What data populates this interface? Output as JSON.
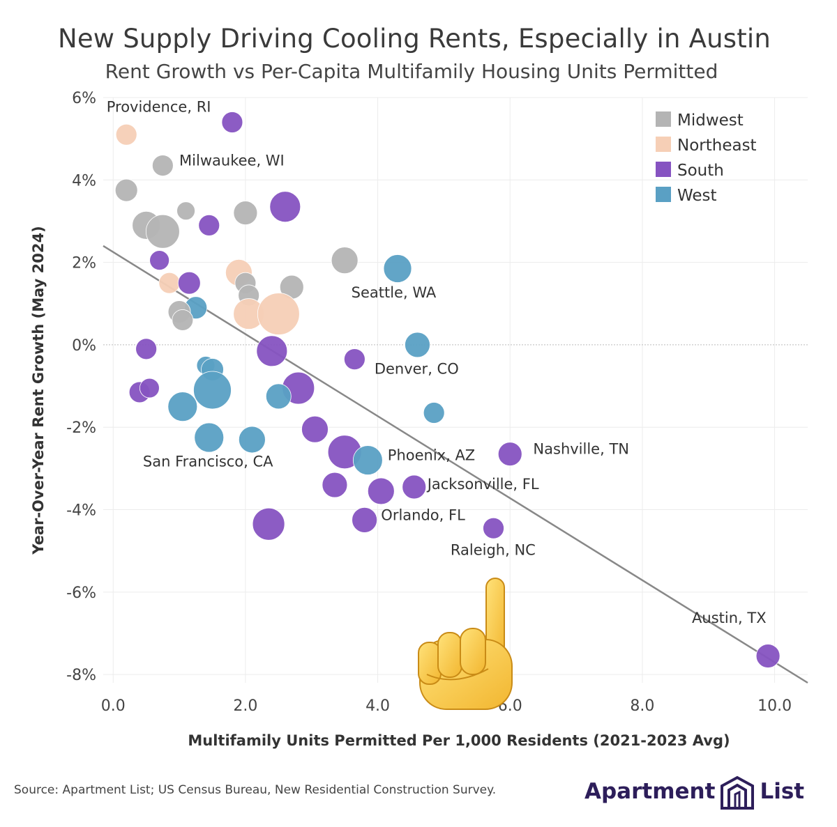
{
  "title": "New Supply Driving Cooling Rents, Especially in Austin",
  "subtitle": "Rent Growth vs Per-Capita Multifamily Housing Units Permitted",
  "source": "Source: Apartment List; US Census Bureau, New Residential Construction Survey.",
  "logo": {
    "word1": "Apartment",
    "word2": "List"
  },
  "colors": {
    "Midwest": "#b4b4b4",
    "Northeast": "#f6cfb6",
    "South": "#8653c1",
    "West": "#5aa0c4",
    "trend": "#888888",
    "grid": "#ececec"
  },
  "chart_data": {
    "type": "scatter",
    "xlabel": "Multifamily Units Permitted Per 1,000 Residents (2021-2023 Avg)",
    "ylabel": "Year-Over-Year Rent Growth (May 2024)",
    "xlim": [
      -0.15,
      10.5
    ],
    "ylim": [
      -8.2,
      6.0
    ],
    "x_ticks": [
      0,
      2,
      4,
      6,
      8,
      10
    ],
    "x_tick_labels": [
      "0.0",
      "2.0",
      "4.0",
      "6.0",
      "8.0",
      "10.0"
    ],
    "y_ticks": [
      6,
      4,
      2,
      0,
      -2,
      -4,
      -6,
      -8
    ],
    "y_tick_labels": [
      "6%",
      "4%",
      "2%",
      "0%",
      "-2%",
      "-4%",
      "-6%",
      "-8%"
    ],
    "grid": true,
    "legend_position": "top-right",
    "legend": [
      "Midwest",
      "Northeast",
      "South",
      "West"
    ],
    "trendline": {
      "x1": -0.15,
      "y1": 2.4,
      "x2": 10.5,
      "y2": -8.2
    },
    "points": [
      {
        "x": 1.8,
        "y": 5.4,
        "region": "South",
        "size": 15
      },
      {
        "x": 0.2,
        "y": 5.1,
        "region": "Northeast",
        "size": 15
      },
      {
        "x": 0.75,
        "y": 4.35,
        "region": "Midwest",
        "size": 15
      },
      {
        "x": 0.2,
        "y": 3.75,
        "region": "Midwest",
        "size": 16
      },
      {
        "x": 1.1,
        "y": 3.25,
        "region": "Midwest",
        "size": 13
      },
      {
        "x": 2.0,
        "y": 3.2,
        "region": "Midwest",
        "size": 17
      },
      {
        "x": 2.6,
        "y": 3.35,
        "region": "South",
        "size": 22
      },
      {
        "x": 1.45,
        "y": 2.9,
        "region": "South",
        "size": 15
      },
      {
        "x": 0.5,
        "y": 2.9,
        "region": "Midwest",
        "size": 20
      },
      {
        "x": 0.75,
        "y": 2.75,
        "region": "Midwest",
        "size": 24
      },
      {
        "x": 0.7,
        "y": 2.05,
        "region": "South",
        "size": 14
      },
      {
        "x": 3.5,
        "y": 2.05,
        "region": "Midwest",
        "size": 19
      },
      {
        "x": 4.3,
        "y": 1.85,
        "region": "West",
        "size": 20
      },
      {
        "x": 1.9,
        "y": 1.75,
        "region": "Northeast",
        "size": 19
      },
      {
        "x": 0.85,
        "y": 1.5,
        "region": "Northeast",
        "size": 15
      },
      {
        "x": 1.15,
        "y": 1.5,
        "region": "South",
        "size": 16
      },
      {
        "x": 2.0,
        "y": 1.5,
        "region": "Midwest",
        "size": 15
      },
      {
        "x": 2.7,
        "y": 1.4,
        "region": "Midwest",
        "size": 17
      },
      {
        "x": 2.05,
        "y": 1.2,
        "region": "Midwest",
        "size": 15
      },
      {
        "x": 1.25,
        "y": 0.9,
        "region": "West",
        "size": 16
      },
      {
        "x": 1.0,
        "y": 0.8,
        "region": "Midwest",
        "size": 16
      },
      {
        "x": 1.05,
        "y": 0.6,
        "region": "Midwest",
        "size": 15
      },
      {
        "x": 2.05,
        "y": 0.75,
        "region": "Northeast",
        "size": 22
      },
      {
        "x": 2.5,
        "y": 0.75,
        "region": "Northeast",
        "size": 30
      },
      {
        "x": 4.6,
        "y": 0.0,
        "region": "West",
        "size": 18
      },
      {
        "x": 0.5,
        "y": -0.1,
        "region": "South",
        "size": 15
      },
      {
        "x": 2.4,
        "y": -0.15,
        "region": "South",
        "size": 22
      },
      {
        "x": 3.65,
        "y": -0.35,
        "region": "South",
        "size": 15
      },
      {
        "x": 1.4,
        "y": -0.5,
        "region": "West",
        "size": 13
      },
      {
        "x": 1.5,
        "y": -0.6,
        "region": "West",
        "size": 16
      },
      {
        "x": 0.4,
        "y": -1.15,
        "region": "South",
        "size": 15
      },
      {
        "x": 0.55,
        "y": -1.05,
        "region": "South",
        "size": 14
      },
      {
        "x": 1.5,
        "y": -1.1,
        "region": "West",
        "size": 27
      },
      {
        "x": 2.8,
        "y": -1.05,
        "region": "South",
        "size": 23
      },
      {
        "x": 2.5,
        "y": -1.25,
        "region": "West",
        "size": 18
      },
      {
        "x": 1.05,
        "y": -1.5,
        "region": "West",
        "size": 21
      },
      {
        "x": 4.85,
        "y": -1.65,
        "region": "West",
        "size": 15
      },
      {
        "x": 3.05,
        "y": -2.05,
        "region": "South",
        "size": 19
      },
      {
        "x": 1.45,
        "y": -2.25,
        "region": "West",
        "size": 21
      },
      {
        "x": 2.1,
        "y": -2.3,
        "region": "West",
        "size": 19
      },
      {
        "x": 3.5,
        "y": -2.6,
        "region": "South",
        "size": 24
      },
      {
        "x": 3.85,
        "y": -2.8,
        "region": "West",
        "size": 21
      },
      {
        "x": 6.0,
        "y": -2.65,
        "region": "South",
        "size": 17
      },
      {
        "x": 3.35,
        "y": -3.4,
        "region": "South",
        "size": 18
      },
      {
        "x": 4.05,
        "y": -3.55,
        "region": "South",
        "size": 19
      },
      {
        "x": 4.55,
        "y": -3.45,
        "region": "South",
        "size": 17
      },
      {
        "x": 3.8,
        "y": -4.25,
        "region": "South",
        "size": 18
      },
      {
        "x": 2.35,
        "y": -4.35,
        "region": "South",
        "size": 23
      },
      {
        "x": 5.75,
        "y": -4.45,
        "region": "South",
        "size": 15
      },
      {
        "x": 9.9,
        "y": -7.55,
        "region": "South",
        "size": 17
      }
    ],
    "annotations": [
      {
        "text": "Providence, RI",
        "x": -0.1,
        "y": 5.65
      },
      {
        "text": "Milwaukee, WI",
        "x": 1.0,
        "y": 4.35
      },
      {
        "text": "Seattle, WA",
        "x": 3.6,
        "y": 1.15
      },
      {
        "text": "Denver, CO",
        "x": 3.95,
        "y": -0.7
      },
      {
        "text": "San Francisco, CA",
        "x": 0.45,
        "y": -2.95
      },
      {
        "text": "Phoenix, AZ",
        "x": 4.15,
        "y": -2.8
      },
      {
        "text": "Nashville, TN",
        "x": 6.35,
        "y": -2.65
      },
      {
        "text": "Jacksonville, FL",
        "x": 4.75,
        "y": -3.5
      },
      {
        "text": "Orlando, FL",
        "x": 4.05,
        "y": -4.25
      },
      {
        "text": "Raleigh, NC",
        "x": 5.1,
        "y": -5.1
      },
      {
        "text": "Austin, TX",
        "x": 8.75,
        "y": -6.75
      }
    ]
  }
}
